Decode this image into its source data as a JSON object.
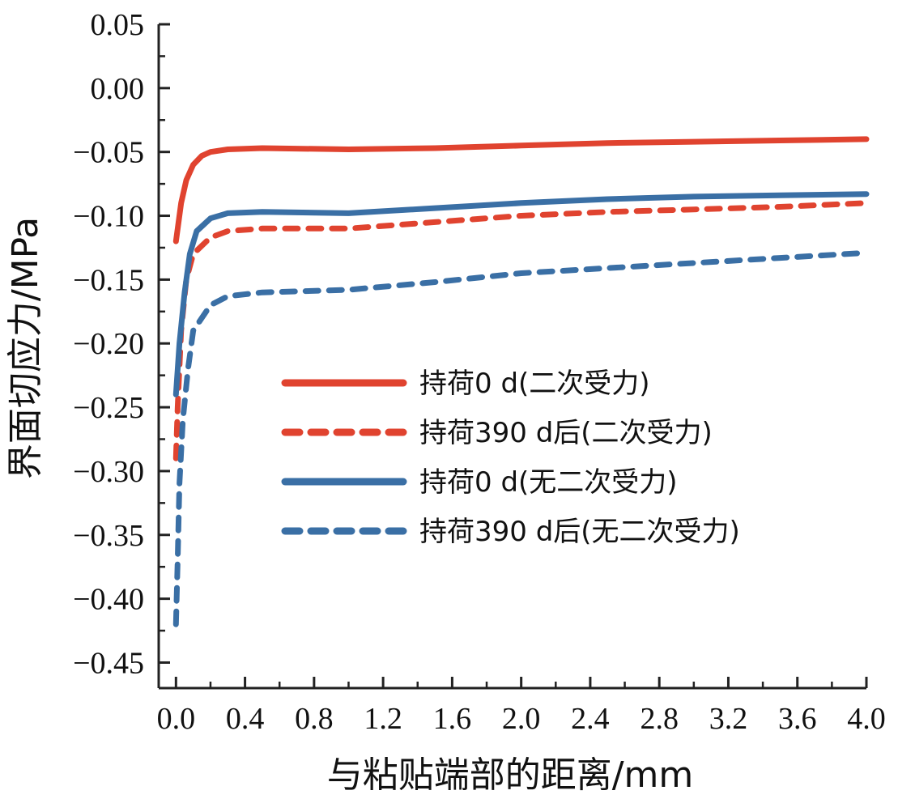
{
  "chart_data": {
    "type": "line",
    "title": "",
    "xlabel": "与粘贴端部的距离/mm",
    "ylabel": "界面切应力/MPa",
    "xlim": [
      -0.1,
      4.0
    ],
    "ylim": [
      -0.47,
      0.05
    ],
    "x_ticks": [
      {
        "value": 0.0,
        "label": "0.0"
      },
      {
        "value": 0.4,
        "label": "0.4"
      },
      {
        "value": 0.8,
        "label": "0.8"
      },
      {
        "value": 1.2,
        "label": "1.2"
      },
      {
        "value": 1.6,
        "label": "1.6"
      },
      {
        "value": 2.0,
        "label": "2.0"
      },
      {
        "value": 2.4,
        "label": "2.4"
      },
      {
        "value": 2.8,
        "label": "2.8"
      },
      {
        "value": 3.2,
        "label": "3.2"
      },
      {
        "value": 3.6,
        "label": "3.6"
      },
      {
        "value": 4.0,
        "label": "4.0"
      }
    ],
    "y_ticks": [
      {
        "value": 0.05,
        "label": "0.05"
      },
      {
        "value": 0.0,
        "label": "0.00"
      },
      {
        "value": -0.05,
        "label": "−0.05"
      },
      {
        "value": -0.1,
        "label": "−0.10"
      },
      {
        "value": -0.15,
        "label": "−0.15"
      },
      {
        "value": -0.2,
        "label": "−0.20"
      },
      {
        "value": -0.25,
        "label": "−0.25"
      },
      {
        "value": -0.3,
        "label": "−0.30"
      },
      {
        "value": -0.35,
        "label": "−0.35"
      },
      {
        "value": -0.4,
        "label": "−0.40"
      },
      {
        "value": -0.45,
        "label": "−0.45"
      }
    ],
    "grid": false,
    "legend_position": "center-right",
    "series": [
      {
        "name": "持荷0 d(二次受力)",
        "color": "#e0432f",
        "dash": "solid",
        "points": [
          [
            0.0,
            -0.12
          ],
          [
            0.03,
            -0.09
          ],
          [
            0.06,
            -0.072
          ],
          [
            0.1,
            -0.06
          ],
          [
            0.15,
            -0.053
          ],
          [
            0.2,
            -0.05
          ],
          [
            0.3,
            -0.048
          ],
          [
            0.5,
            -0.047
          ],
          [
            1.0,
            -0.048
          ],
          [
            1.5,
            -0.047
          ],
          [
            2.0,
            -0.045
          ],
          [
            2.5,
            -0.043
          ],
          [
            3.0,
            -0.042
          ],
          [
            3.5,
            -0.041
          ],
          [
            4.0,
            -0.04
          ]
        ]
      },
      {
        "name": "持荷390 d后(二次受力)",
        "color": "#e0432f",
        "dash": "dashed",
        "points": [
          [
            0.0,
            -0.29
          ],
          [
            0.01,
            -0.25
          ],
          [
            0.03,
            -0.19
          ],
          [
            0.06,
            -0.15
          ],
          [
            0.1,
            -0.13
          ],
          [
            0.2,
            -0.117
          ],
          [
            0.3,
            -0.112
          ],
          [
            0.5,
            -0.11
          ],
          [
            1.0,
            -0.11
          ],
          [
            1.5,
            -0.105
          ],
          [
            2.0,
            -0.1
          ],
          [
            2.5,
            -0.097
          ],
          [
            3.0,
            -0.095
          ],
          [
            3.5,
            -0.093
          ],
          [
            4.0,
            -0.09
          ]
        ]
      },
      {
        "name": "持荷0 d(无二次受力)",
        "color": "#3a6fa5",
        "dash": "solid",
        "points": [
          [
            0.0,
            -0.24
          ],
          [
            0.02,
            -0.2
          ],
          [
            0.05,
            -0.16
          ],
          [
            0.08,
            -0.13
          ],
          [
            0.12,
            -0.112
          ],
          [
            0.2,
            -0.102
          ],
          [
            0.3,
            -0.098
          ],
          [
            0.5,
            -0.097
          ],
          [
            1.0,
            -0.098
          ],
          [
            1.5,
            -0.094
          ],
          [
            2.0,
            -0.09
          ],
          [
            2.5,
            -0.087
          ],
          [
            3.0,
            -0.085
          ],
          [
            3.5,
            -0.084
          ],
          [
            4.0,
            -0.083
          ]
        ]
      },
      {
        "name": "持荷390 d后(无二次受力)",
        "color": "#3a6fa5",
        "dash": "dashed",
        "points": [
          [
            0.0,
            -0.42
          ],
          [
            0.01,
            -0.37
          ],
          [
            0.02,
            -0.31
          ],
          [
            0.04,
            -0.26
          ],
          [
            0.07,
            -0.22
          ],
          [
            0.1,
            -0.19
          ],
          [
            0.2,
            -0.17
          ],
          [
            0.3,
            -0.163
          ],
          [
            0.5,
            -0.16
          ],
          [
            1.0,
            -0.158
          ],
          [
            1.5,
            -0.152
          ],
          [
            2.0,
            -0.145
          ],
          [
            2.5,
            -0.141
          ],
          [
            3.0,
            -0.137
          ],
          [
            3.5,
            -0.133
          ],
          [
            4.0,
            -0.129
          ]
        ]
      }
    ]
  }
}
